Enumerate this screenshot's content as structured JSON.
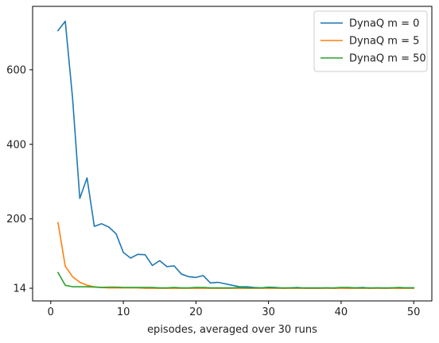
{
  "chart_data": {
    "type": "line",
    "title": "",
    "xlabel": "episodes, averaged over 30 runs",
    "ylabel": "",
    "xlim": [
      -2.5,
      52.5
    ],
    "ylim": [
      -20,
      770
    ],
    "xticks": [
      0,
      10,
      20,
      30,
      40,
      50
    ],
    "yticks": [
      14,
      200,
      400,
      600
    ],
    "grid": false,
    "legend_position": "top-right",
    "x": [
      1,
      2,
      3,
      4,
      5,
      6,
      7,
      8,
      9,
      10,
      11,
      12,
      13,
      14,
      15,
      16,
      17,
      18,
      19,
      20,
      21,
      22,
      23,
      24,
      25,
      26,
      27,
      28,
      29,
      30,
      31,
      32,
      33,
      34,
      35,
      36,
      37,
      38,
      39,
      40,
      41,
      42,
      43,
      44,
      45,
      46,
      47,
      48,
      49,
      50
    ],
    "series": [
      {
        "name": "DynaQ m = 0",
        "color": "#1f77b4",
        "values": [
          705,
          730,
          525,
          255,
          310,
          180,
          187,
          178,
          160,
          110,
          95,
          105,
          104,
          75,
          88,
          72,
          74,
          52,
          45,
          43,
          48,
          28,
          30,
          26,
          22,
          18,
          18,
          16,
          15,
          17,
          16,
          14,
          15,
          16,
          14,
          14,
          14,
          15,
          14,
          15,
          14,
          15,
          16,
          14,
          15,
          14,
          15,
          14,
          15,
          15
        ]
      },
      {
        "name": "DynaQ m = 5",
        "color": "#ff7f0e",
        "values": [
          190,
          73,
          45,
          30,
          22,
          18,
          16,
          15,
          15,
          15,
          15,
          15,
          14,
          14,
          14,
          14,
          14,
          14,
          14,
          14,
          14,
          14,
          14,
          14,
          14,
          14,
          14,
          14,
          14,
          14,
          14,
          14,
          14,
          14,
          14,
          14,
          14,
          14,
          14,
          14,
          14,
          14,
          14,
          14,
          14,
          14,
          14,
          14,
          14,
          14
        ]
      },
      {
        "name": "DynaQ m = 50",
        "color": "#2ca02c",
        "values": [
          56,
          22,
          18,
          18,
          18,
          17,
          16,
          17,
          17,
          16,
          16,
          16,
          16,
          16,
          15,
          15,
          16,
          15,
          15,
          16,
          16,
          15,
          15,
          15,
          15,
          16,
          15,
          15,
          15,
          16,
          15,
          15,
          15,
          15,
          15,
          15,
          15,
          15,
          15,
          16,
          16,
          15,
          15,
          15,
          15,
          15,
          15,
          16,
          15,
          15
        ]
      }
    ]
  }
}
